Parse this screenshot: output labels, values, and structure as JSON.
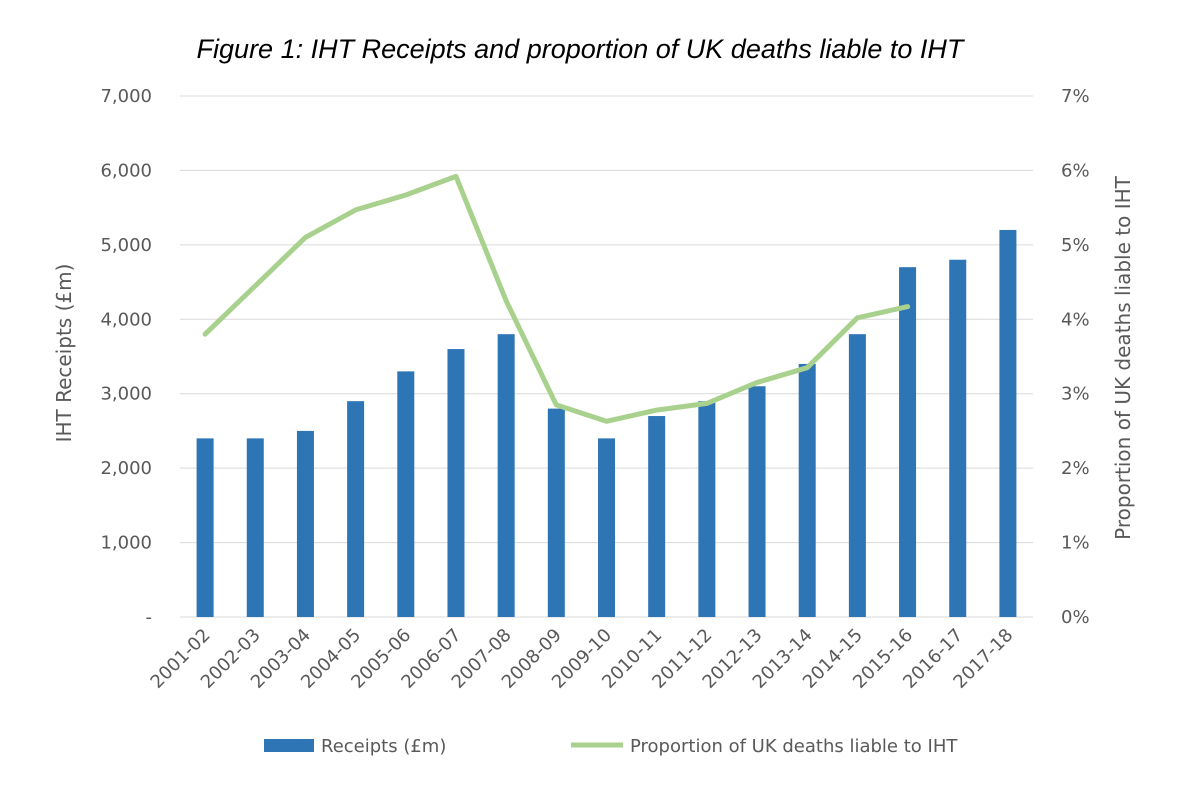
{
  "chart_data": {
    "type": "bar",
    "title": "Figure 1: IHT Receipts and proportion of UK deaths liable to IHT",
    "categories": [
      "2001-02",
      "2002-03",
      "2003-04",
      "2004-05",
      "2005-06",
      "2006-07",
      "2007-08",
      "2008-09",
      "2009-10",
      "2010-11",
      "2011-12",
      "2012-13",
      "2013-14",
      "2014-15",
      "2015-16",
      "2016-17",
      "2017-18"
    ],
    "series": [
      {
        "name": "Receipts (£m)",
        "type": "bar",
        "axis": "left",
        "color": "#2e75b6",
        "values": [
          2400,
          2400,
          2500,
          2900,
          3300,
          3600,
          3800,
          2800,
          2400,
          2700,
          2900,
          3100,
          3400,
          3800,
          4700,
          4800,
          5200
        ]
      },
      {
        "name": "Proportion of UK deaths liable to IHT",
        "type": "line",
        "axis": "right",
        "color": "#a9d18e",
        "values": [
          3.8,
          4.45,
          5.1,
          5.47,
          5.67,
          5.92,
          4.25,
          2.85,
          2.63,
          2.78,
          2.87,
          3.15,
          3.35,
          4.02,
          4.17,
          null,
          null
        ]
      }
    ],
    "y_left": {
      "label": "IHT Receipts (£m)",
      "range": [
        0,
        7000
      ],
      "ticks": [
        0,
        1000,
        2000,
        3000,
        4000,
        5000,
        6000,
        7000
      ],
      "tick_labels": [
        "-",
        "1,000",
        "2,000",
        "3,000",
        "4,000",
        "5,000",
        "6,000",
        "7,000"
      ]
    },
    "y_right": {
      "label": "Proportion of UK deaths liable to IHT",
      "range": [
        0,
        7
      ],
      "ticks": [
        0,
        1,
        2,
        3,
        4,
        5,
        6,
        7
      ],
      "tick_labels": [
        "0%",
        "1%",
        "2%",
        "3%",
        "4%",
        "5%",
        "6%",
        "7%"
      ]
    },
    "grid": true,
    "legend": "bottom"
  }
}
